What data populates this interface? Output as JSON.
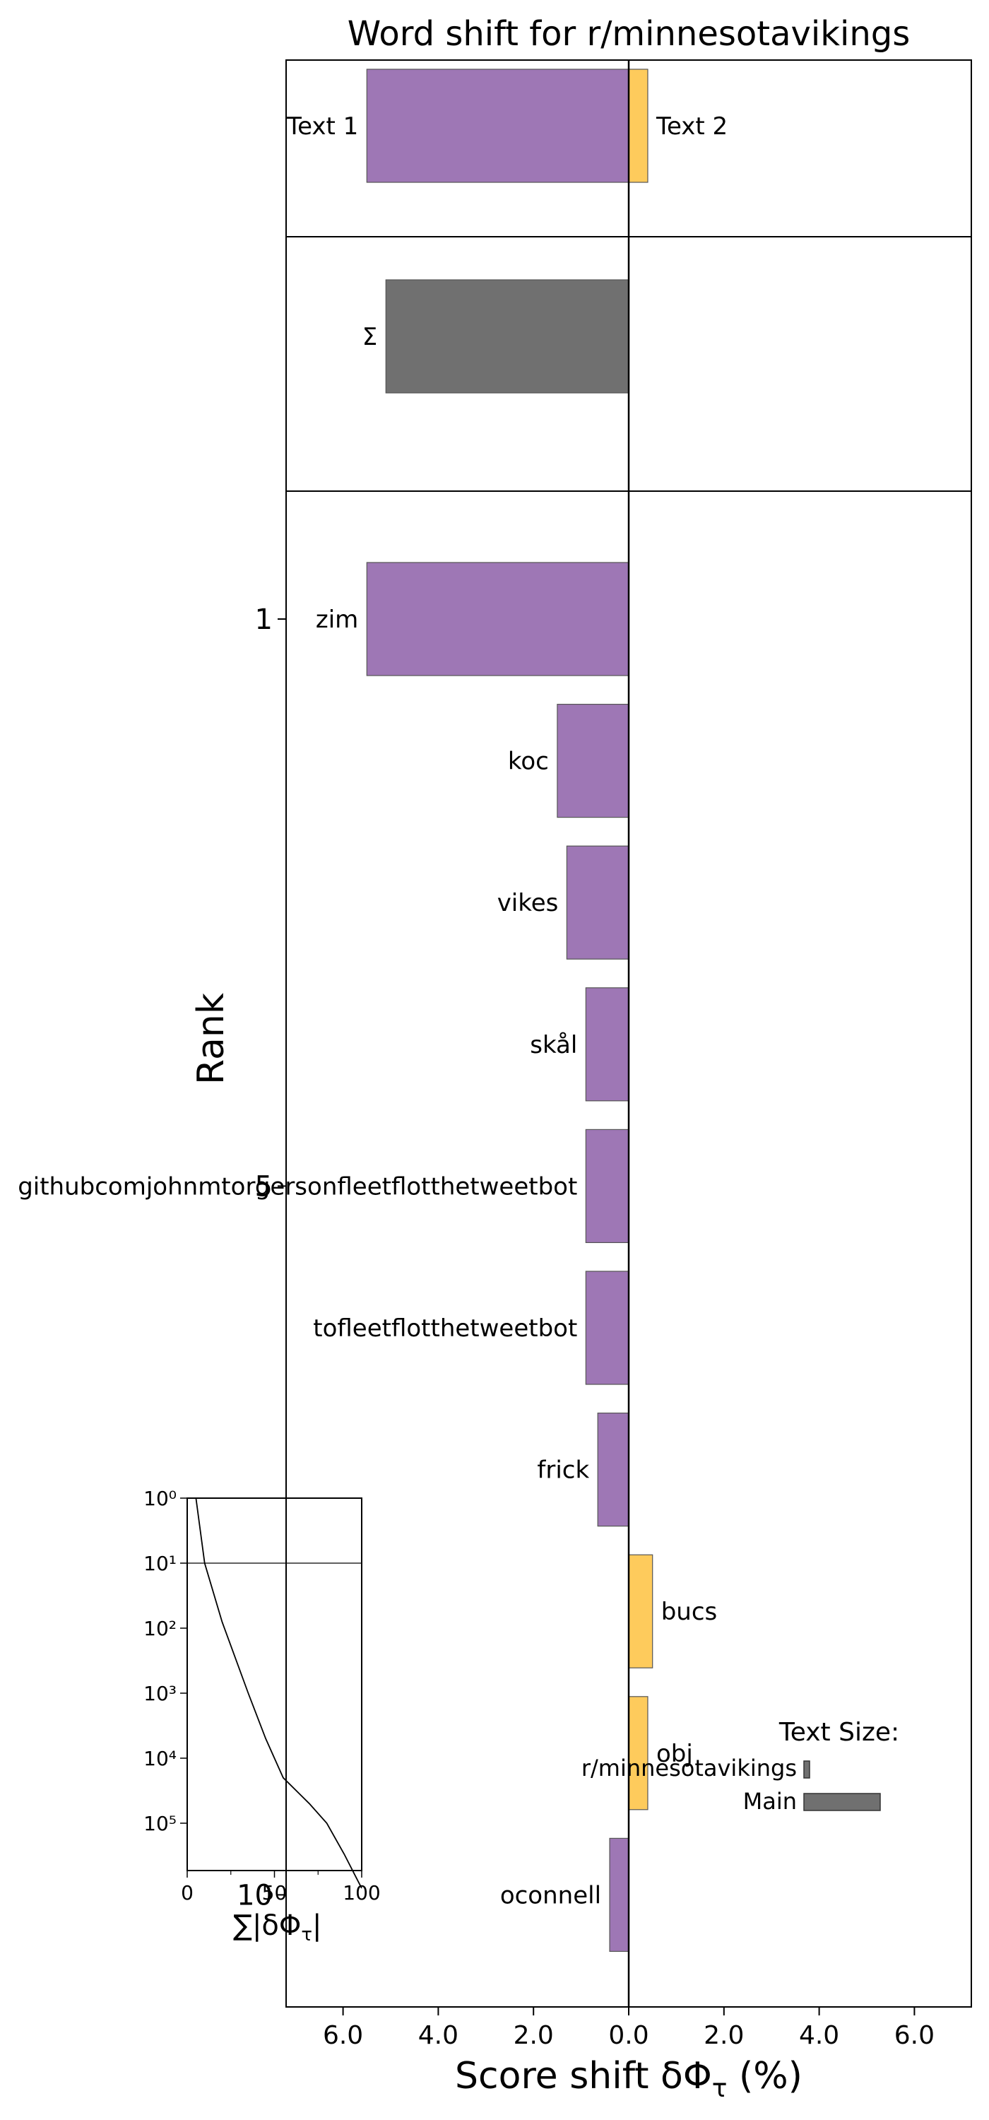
{
  "chart_data": {
    "type": "bar",
    "orientation": "horizontal",
    "title": "Word shift for r/minnesotavikings",
    "xlabel": "Score shift δΦ_τ (%)",
    "ylabel": "Rank",
    "xlim": [
      -7.2,
      7.2
    ],
    "x_tick_labels": [
      "6.0",
      "4.0",
      "2.0",
      "0.0",
      "2.0",
      "4.0",
      "6.0"
    ],
    "x_tick_values": [
      -6,
      -4,
      -2,
      0,
      2,
      4,
      6
    ],
    "y_tick_labels": [
      {
        "label": "1",
        "rank": 1
      },
      {
        "label": "5",
        "rank": 5
      },
      {
        "label": "10",
        "rank": 10
      }
    ],
    "colors": {
      "text1": "#9e77b5",
      "text2": "#fecb5c",
      "sum": "#707070",
      "edge": "#555555"
    },
    "totals_panel": {
      "bars": [
        {
          "label": "Text 1",
          "value": -5.5,
          "color": "text1"
        },
        {
          "label": "Text 2",
          "value": 0.4,
          "color": "text2"
        }
      ]
    },
    "sum_panel": {
      "label": "Σ",
      "value": -5.1
    },
    "words": [
      {
        "rank": 1,
        "word": "zim",
        "value": -5.5
      },
      {
        "rank": 2,
        "word": "koc",
        "value": -1.5
      },
      {
        "rank": 3,
        "word": "vikes",
        "value": -1.3
      },
      {
        "rank": 4,
        "word": "skål",
        "value": -0.9
      },
      {
        "rank": 5,
        "word": "githubcomjohnmtorgersonfleetflotthetweetbot",
        "value": -0.9
      },
      {
        "rank": 6,
        "word": "tofleetflotthetweetbot",
        "value": -0.9
      },
      {
        "rank": 7,
        "word": "frick",
        "value": -0.65
      },
      {
        "rank": 8,
        "word": "bucs",
        "value": 0.5
      },
      {
        "rank": 9,
        "word": "obj",
        "value": 0.4
      },
      {
        "rank": 10,
        "word": "oconnell",
        "value": -0.4
      }
    ],
    "text_size_legend": {
      "title": "Text Size:",
      "items": [
        {
          "label": "r/minnesotavikings",
          "relative_size": 0.07
        },
        {
          "label": "Main",
          "relative_size": 1.0
        }
      ]
    },
    "inset": {
      "xlabel": "∑|δΦ_τ|",
      "x_tick_labels": [
        "0",
        "50",
        "100"
      ],
      "x_tick_values": [
        0,
        50,
        100
      ],
      "y_tick_labels": [
        "10⁰",
        "10¹",
        "10²",
        "10³",
        "10⁴",
        "10⁵"
      ],
      "y_scale": "log",
      "reference_line_y": 10,
      "curve": [
        [
          5,
          1
        ],
        [
          10,
          10
        ],
        [
          20,
          80
        ],
        [
          35,
          1000
        ],
        [
          45,
          5000
        ],
        [
          55,
          20000
        ],
        [
          70,
          50000
        ],
        [
          80,
          100000
        ],
        [
          90,
          300000
        ],
        [
          97,
          700000
        ],
        [
          100,
          1000000
        ]
      ]
    }
  }
}
